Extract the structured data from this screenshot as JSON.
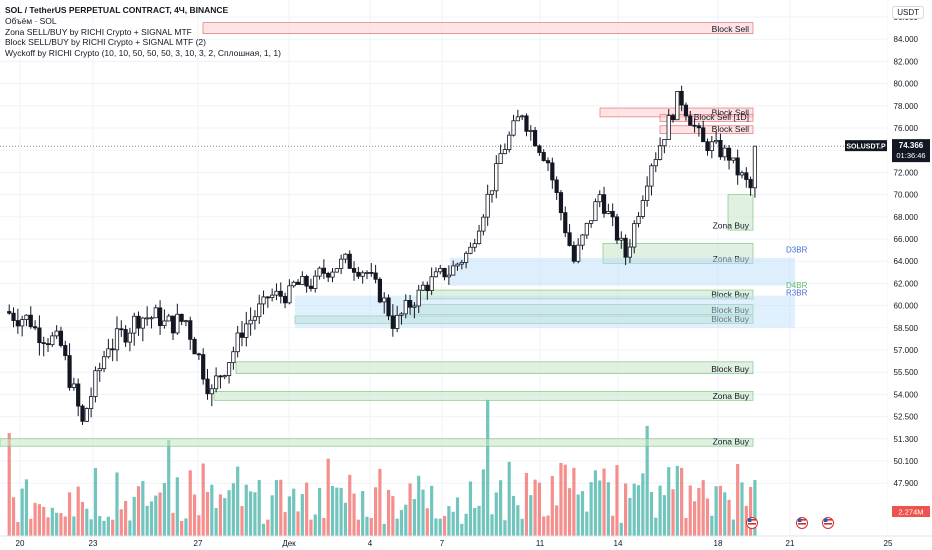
{
  "legend": {
    "title": "SOL / TetherUS PERPETUAL CONTRACT, 4Ч, BINANCE",
    "volume": "Объём · SOL",
    "ind1": "Zona SELL/BUY by RICHI Crypto + SIGNAL MTF",
    "ind2": "Block SELL/BUY by RICHI Crypto + SIGNAL MTF (2)",
    "ind3": "Wyckoff by RICHI Crypto (10, 10, 50, 50, 50, 3, 10, 3, 2, Сплошная, 1, 1)"
  },
  "currency": "USDT",
  "colors": {
    "up": "#131722",
    "down": "#131722",
    "vol_up": "#26a69a",
    "vol_down": "#ef5350",
    "buy_zone": "#c8e6c9",
    "sell_zone": "#ffcdd2",
    "blue_zone": "#bbdefb"
  },
  "chart_data": {
    "type": "candlestick",
    "symbol": "SOLUSDT.P",
    "last_price": "74.366",
    "countdown": "01:36:46",
    "volume_label": "2.274M",
    "y_ticks": [
      "86.000",
      "84.000",
      "82.000",
      "80.000",
      "78.000",
      "76.000",
      "74.000",
      "72.000",
      "70.000",
      "68.000",
      "66.000",
      "64.000",
      "62.000",
      "60.000",
      "58.500",
      "57.000",
      "55.500",
      "54.000",
      "52.500",
      "51.300",
      "50.100",
      "47.900"
    ],
    "x_ticks": [
      "20",
      "23",
      "27",
      "Дек",
      "4",
      "7",
      "11",
      "14",
      "18",
      "21",
      "25"
    ],
    "ohlc_anchors": [
      {
        "date": "20",
        "close": 59.0
      },
      {
        "date": "21",
        "close": 57.5
      },
      {
        "date": "22",
        "close": 52.0
      },
      {
        "date": "23",
        "close": 57.5
      },
      {
        "date": "24",
        "close": 58.9
      },
      {
        "date": "25",
        "close": 59.2
      },
      {
        "date": "26",
        "close": 59.0
      },
      {
        "date": "27",
        "close": 54.0
      },
      {
        "date": "28",
        "close": 57.5
      },
      {
        "date": "29",
        "close": 60.0
      },
      {
        "date": "30",
        "close": 61.0
      },
      {
        "date": "Дек",
        "close": 62.0
      },
      {
        "date": "2",
        "close": 63.8
      },
      {
        "date": "3",
        "close": 63.0
      },
      {
        "date": "4",
        "close": 59.0
      },
      {
        "date": "5",
        "close": 61.0
      },
      {
        "date": "6",
        "close": 63.0
      },
      {
        "date": "7",
        "close": 65.0
      },
      {
        "date": "8",
        "close": 72.0
      },
      {
        "date": "9",
        "close": 77.5
      },
      {
        "date": "10",
        "close": 73.0
      },
      {
        "date": "11",
        "close": 64.0
      },
      {
        "date": "12",
        "close": 70.0
      },
      {
        "date": "13",
        "close": 64.5
      },
      {
        "date": "14",
        "close": 73.0
      },
      {
        "date": "15",
        "close": 78.5
      },
      {
        "date": "16",
        "close": 74.5
      },
      {
        "date": "17",
        "close": 73.5
      },
      {
        "date": "18",
        "close": 70.0
      },
      {
        "date": "19",
        "close": 74.366
      }
    ],
    "zones": [
      {
        "label": "Block Sell",
        "low": 84.5,
        "high": 85.5,
        "kind": "sell"
      },
      {
        "label": "Block Sell",
        "low": 77.0,
        "high": 77.8,
        "kind": "sell"
      },
      {
        "label": "Block Sell [1D]",
        "low": 76.6,
        "high": 77.2,
        "kind": "sell"
      },
      {
        "label": "Block Sell",
        "low": 75.5,
        "high": 76.2,
        "kind": "sell"
      },
      {
        "label": "Zona Buy",
        "low": 66.8,
        "high": 70.0,
        "kind": "buy"
      },
      {
        "label": "Zona Buy",
        "low": 63.8,
        "high": 65.6,
        "kind": "buy"
      },
      {
        "label": "Block Buy",
        "low": 60.6,
        "high": 61.4,
        "kind": "buy"
      },
      {
        "label": "Block Buy",
        "low": 59.4,
        "high": 60.1,
        "kind": "buy"
      },
      {
        "label": "Block Buy",
        "low": 58.8,
        "high": 59.3,
        "kind": "buy"
      },
      {
        "label": "Block Buy",
        "low": 55.4,
        "high": 56.2,
        "kind": "buy"
      },
      {
        "label": "Zona Buy",
        "low": 53.6,
        "high": 54.2,
        "kind": "buy"
      },
      {
        "label": "Zona Buy",
        "low": 50.9,
        "high": 51.3,
        "kind": "buy"
      }
    ],
    "side_labels": [
      {
        "text": "D3BR",
        "price": 64.8
      },
      {
        "text": "D4BR",
        "price": 61.6
      },
      {
        "text": "R3BR",
        "price": 60.9
      }
    ]
  }
}
